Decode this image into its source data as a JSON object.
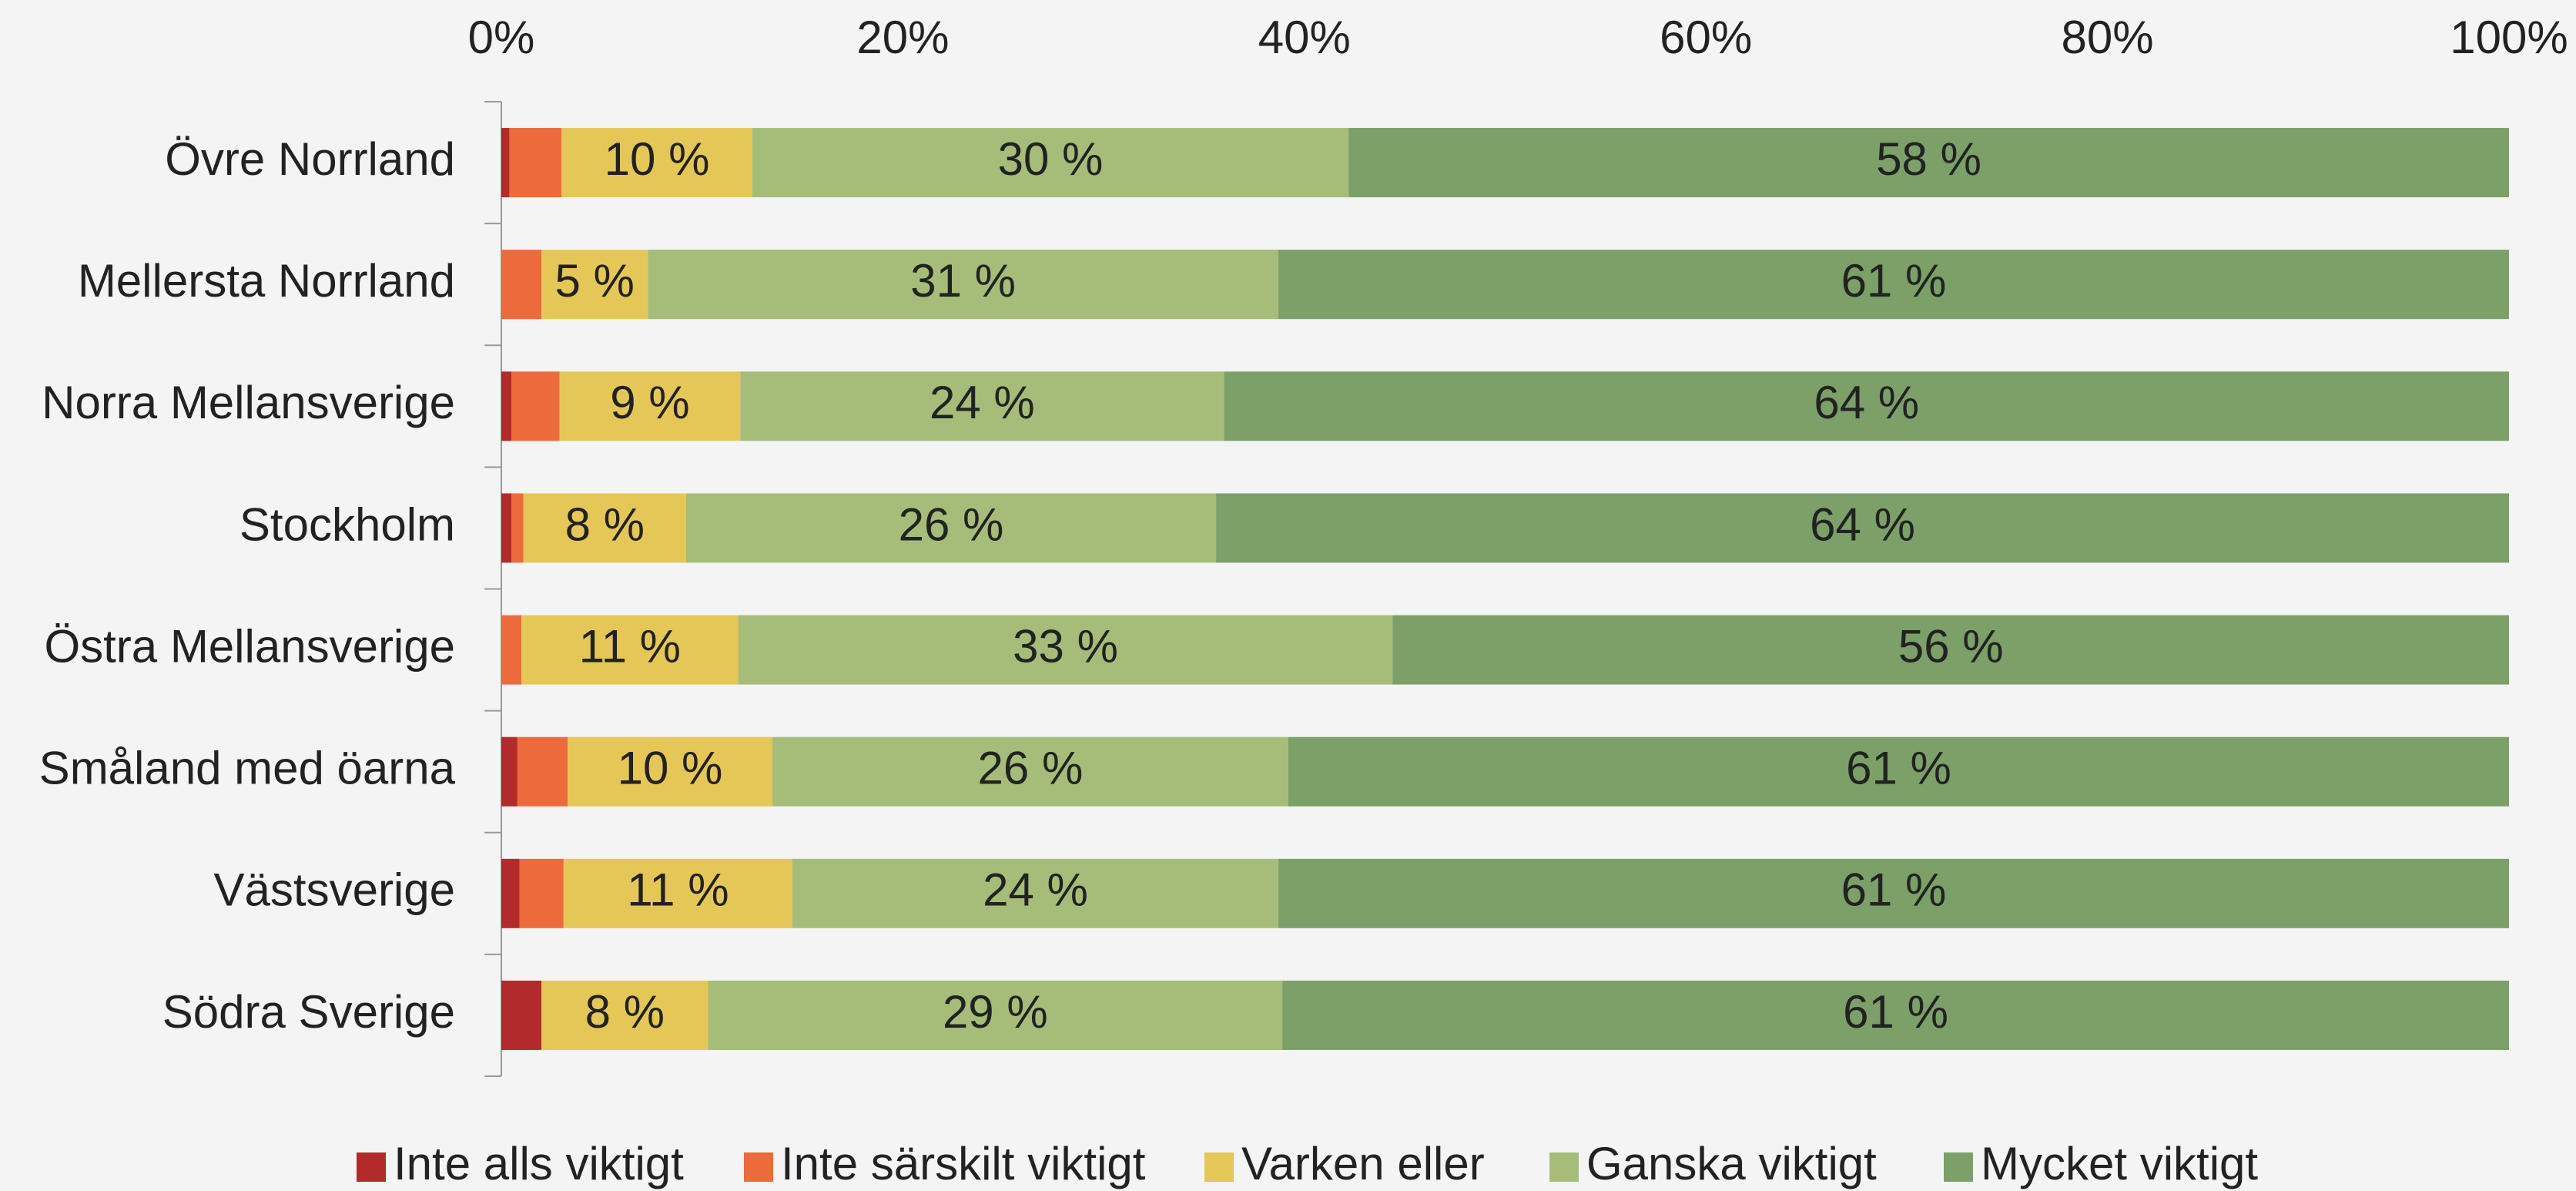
{
  "chart_data": {
    "type": "stacked_barh",
    "categories": [
      "Övre Norrland",
      "Mellersta Norrland",
      "Norra Mellansverige",
      "Stockholm",
      "Östra Mellansverige",
      "Småland med öarna",
      "Västsverige",
      "Södra Sverige"
    ],
    "series": [
      {
        "name": "Inte alls viktigt",
        "color": "#b22a2a",
        "values": [
          0.4,
          0,
          0.5,
          0.5,
          0,
          0.8,
          0.9,
          2.0
        ]
      },
      {
        "name": "Inte särskilt viktigt",
        "color": "#ec6a3c",
        "values": [
          2.6,
          2.0,
          2.4,
          0.6,
          1.0,
          2.5,
          2.2,
          0
        ]
      },
      {
        "name": "Varken eller",
        "color": "#e5c757",
        "values": [
          9.5,
          5.3,
          9.0,
          8.1,
          10.8,
          10.2,
          11.4,
          8.3
        ],
        "value_labels": [
          "10 %",
          "5 %",
          "9 %",
          "8 %",
          "11 %",
          "10 %",
          "11 %",
          "8 %"
        ]
      },
      {
        "name": "Ganska viktigt",
        "color": "#a5bd78",
        "values": [
          29.7,
          31.4,
          24.1,
          26.4,
          32.6,
          25.7,
          24.2,
          28.6
        ],
        "value_labels": [
          "30 %",
          "31 %",
          "24 %",
          "26 %",
          "33 %",
          "26 %",
          "24 %",
          "29 %"
        ]
      },
      {
        "name": "Mycket viktigt",
        "color": "#7ba068",
        "values": [
          57.8,
          61.3,
          64.0,
          64.4,
          55.6,
          60.8,
          61.3,
          61.1
        ],
        "value_labels": [
          "58 %",
          "61 %",
          "64 %",
          "64 %",
          "56 %",
          "61 %",
          "61 %",
          "61 %"
        ]
      }
    ],
    "xlim": [
      0,
      100
    ],
    "xticks": [
      {
        "value": 0,
        "label": "0%"
      },
      {
        "value": 20,
        "label": "20%"
      },
      {
        "value": 40,
        "label": "40%"
      },
      {
        "value": 60,
        "label": "60%"
      },
      {
        "value": 80,
        "label": "80%"
      },
      {
        "value": 100,
        "label": "100%"
      }
    ],
    "legend": "bottom"
  }
}
